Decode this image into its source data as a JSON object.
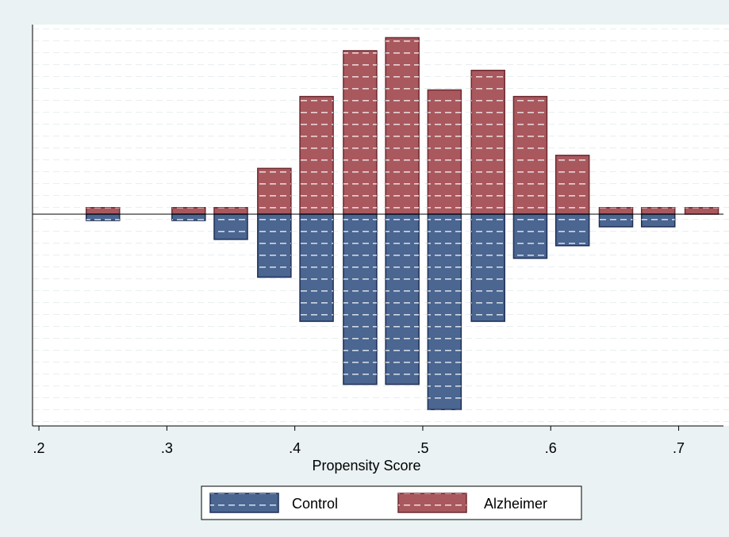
{
  "chart_data": {
    "type": "bar",
    "orientation": "mirrored-vertical",
    "xlabel": "Propensity Score",
    "xticks": [
      ".2",
      ".3",
      ".4",
      ".5",
      ".6",
      ".7"
    ],
    "xtick_values": [
      0.2,
      0.3,
      0.4,
      0.5,
      0.6,
      0.7
    ],
    "xlim": [
      0.195,
      0.735
    ],
    "bin_width": 0.0334,
    "y_axis_labels_shown": false,
    "bin_centers": [
      0.25,
      0.317,
      0.35,
      0.384,
      0.417,
      0.451,
      0.484,
      0.517,
      0.551,
      0.584,
      0.617,
      0.651,
      0.684,
      0.718
    ],
    "series": [
      {
        "name": "Alzheimer",
        "color": "#a9585e",
        "direction": "up",
        "values": [
          0.5,
          0.5,
          0.5,
          3.5,
          9.0,
          12.5,
          13.5,
          9.5,
          11.0,
          9.0,
          4.5,
          0.5,
          0.5,
          0.5
        ]
      },
      {
        "name": "Control",
        "color": "#4a6691",
        "direction": "down",
        "values": [
          0.5,
          0.5,
          2.0,
          5.0,
          8.5,
          13.5,
          13.5,
          15.5,
          8.5,
          3.5,
          2.5,
          1.0,
          1.0,
          0
        ]
      }
    ],
    "ylim": [
      -16.8,
      14.5
    ],
    "grid": "dotted-horizontal",
    "legend": {
      "placement": "bottom-center",
      "entries": [
        "Control",
        "Alzheimer"
      ]
    },
    "colors": {
      "outer_background": "#eaf2f3",
      "plot_background": "#ffffff",
      "zero_line": "#000000"
    }
  }
}
